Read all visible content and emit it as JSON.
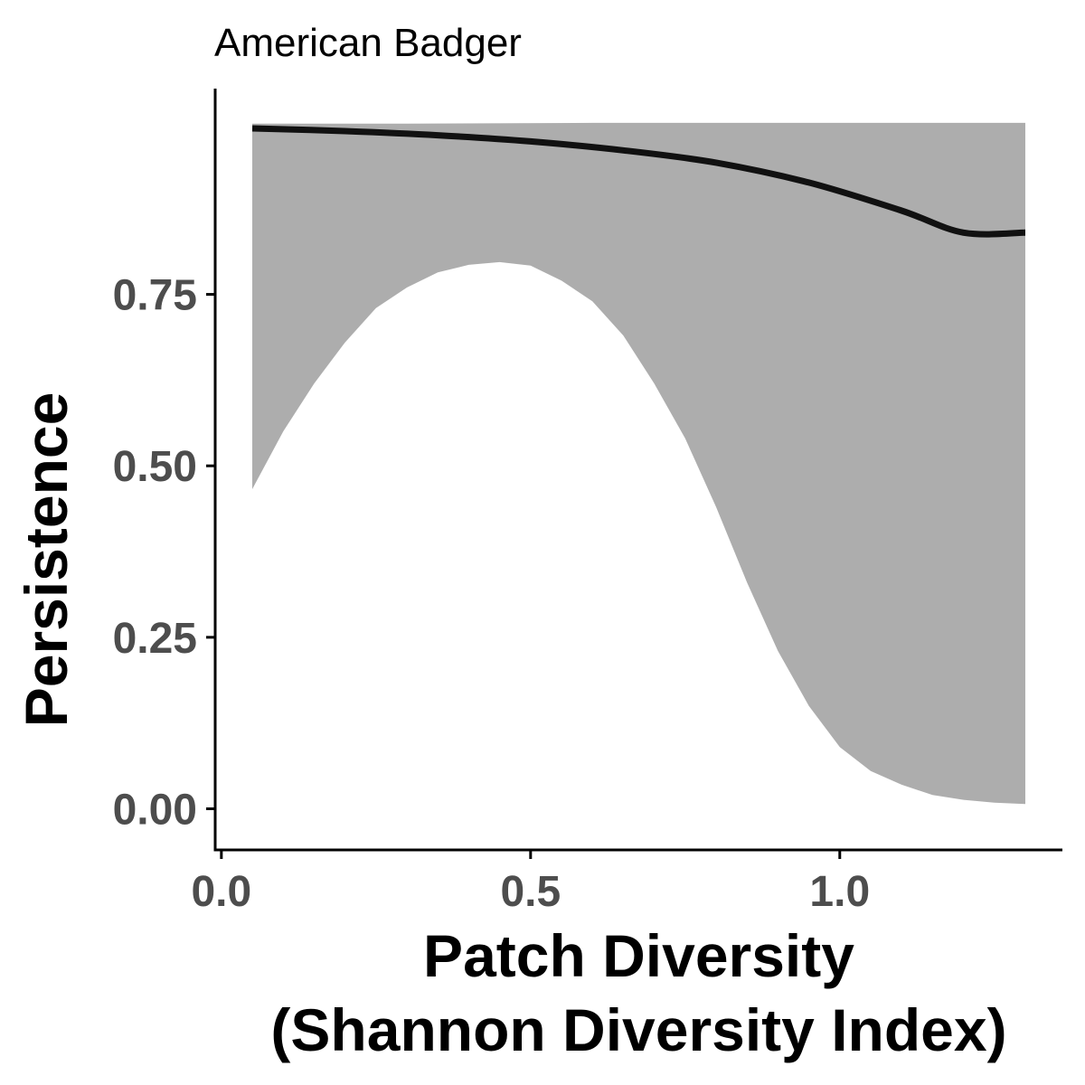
{
  "chart_data": {
    "type": "area",
    "title": "American Badger",
    "xlabel_lines": [
      "Patch Diversity",
      "(Shannon Diversity Index)"
    ],
    "ylabel": "Persistence",
    "xlim": [
      -0.01,
      1.36
    ],
    "ylim": [
      -0.06,
      1.05
    ],
    "x_ticks": [
      {
        "value": 0.0,
        "label": "0.0"
      },
      {
        "value": 0.5,
        "label": "0.5"
      },
      {
        "value": 1.0,
        "label": "1.0"
      }
    ],
    "y_ticks": [
      {
        "value": 0.0,
        "label": "0.00"
      },
      {
        "value": 0.25,
        "label": "0.25"
      },
      {
        "value": 0.5,
        "label": "0.50"
      },
      {
        "value": 0.75,
        "label": "0.75"
      }
    ],
    "grid": false,
    "legend": "none",
    "series": [
      {
        "role": "fit",
        "x": [
          0.05,
          0.2,
          0.35,
          0.5,
          0.65,
          0.8,
          0.95,
          1.1,
          1.2,
          1.3
        ],
        "y": [
          0.992,
          0.988,
          0.982,
          0.973,
          0.96,
          0.942,
          0.913,
          0.872,
          0.84,
          0.84
        ]
      },
      {
        "role": "ci-upper",
        "x": [
          0.05,
          0.3,
          0.6,
          0.9,
          1.1,
          1.3
        ],
        "y": [
          0.999,
          0.999,
          1.0,
          1.0,
          1.0,
          1.0
        ]
      },
      {
        "role": "ci-lower",
        "x": [
          0.05,
          0.1,
          0.15,
          0.2,
          0.25,
          0.3,
          0.35,
          0.4,
          0.45,
          0.5,
          0.55,
          0.6,
          0.65,
          0.7,
          0.75,
          0.8,
          0.85,
          0.9,
          0.95,
          1.0,
          1.05,
          1.1,
          1.15,
          1.2,
          1.25,
          1.3
        ],
        "y": [
          0.466,
          0.55,
          0.62,
          0.68,
          0.73,
          0.76,
          0.782,
          0.793,
          0.797,
          0.792,
          0.77,
          0.74,
          0.69,
          0.62,
          0.54,
          0.44,
          0.33,
          0.23,
          0.15,
          0.09,
          0.055,
          0.035,
          0.02,
          0.013,
          0.009,
          0.007
        ]
      }
    ],
    "colors": {
      "ribbon": "#adadad",
      "line": "#111111",
      "axis": "#000000",
      "tick_text": "#4d4d4d"
    }
  }
}
